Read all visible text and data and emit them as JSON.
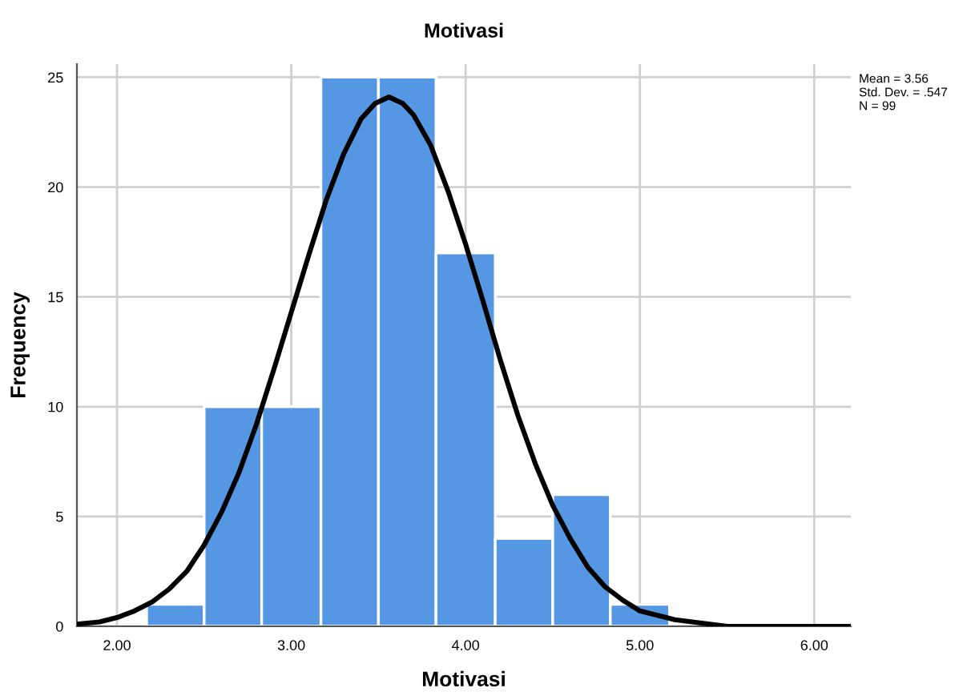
{
  "chart_data": {
    "type": "histogram",
    "title": "Motivasi",
    "xlabel": "Motivasi",
    "ylabel": "Frequency",
    "bins": [
      2.17,
      2.5,
      2.83,
      3.17,
      3.5,
      3.83,
      4.17,
      4.5,
      4.83,
      5.17
    ],
    "values": [
      1,
      10,
      10,
      25,
      25,
      17,
      4,
      6,
      1
    ],
    "color": "#5597e3",
    "series": [
      {
        "type": "line",
        "color": "#000000",
        "x": [
          1.77,
          1.9,
          2.0,
          2.1,
          2.2,
          2.3,
          2.4,
          2.5,
          2.6,
          2.7,
          2.8,
          2.9,
          3.0,
          3.1,
          3.2,
          3.3,
          3.4,
          3.48,
          3.56,
          3.64,
          3.7,
          3.8,
          3.9,
          4.0,
          4.1,
          4.2,
          4.3,
          4.4,
          4.5,
          4.6,
          4.7,
          4.8,
          4.9,
          5.0,
          5.1,
          5.2,
          5.3,
          5.5,
          5.8,
          6.21
        ],
        "values": [
          0.1,
          0.2,
          0.4,
          0.7,
          1.1,
          1.7,
          2.5,
          3.7,
          5.2,
          7.0,
          9.2,
          11.7,
          14.3,
          16.9,
          19.4,
          21.5,
          23.1,
          23.8,
          24.1,
          23.8,
          23.3,
          21.9,
          19.8,
          17.4,
          14.8,
          12.1,
          9.6,
          7.4,
          5.5,
          4.0,
          2.7,
          1.8,
          1.2,
          0.7,
          0.5,
          0.3,
          0.2,
          0.0,
          0.0,
          0.0
        ]
      }
    ],
    "xlim": [
      1.77,
      6.21
    ],
    "ylim": [
      0,
      25.6
    ],
    "xticks": [
      {
        "value": 2,
        "label": "2.00"
      },
      {
        "value": 3,
        "label": "3.00"
      },
      {
        "value": 4,
        "label": "4.00"
      },
      {
        "value": 5,
        "label": "5.00"
      },
      {
        "value": 6,
        "label": "6.00"
      }
    ],
    "yticks": [
      0,
      5,
      10,
      15,
      20,
      25
    ],
    "grid": true,
    "annotations": [
      "Mean = 3.56",
      "Std. Dev. = .547",
      "N = 99"
    ]
  }
}
